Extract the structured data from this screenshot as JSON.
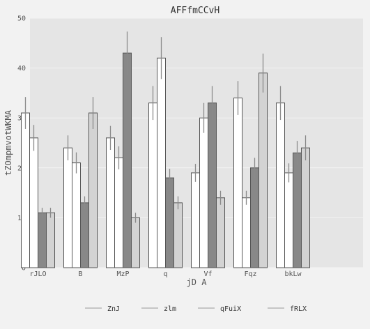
{
  "chart_data": {
    "type": "bar",
    "title": "AFFfmCCvH",
    "xlabel": "jD A",
    "ylabel": "tZOmpmvotWKMA",
    "ylim": [
      0,
      50
    ],
    "yticks": [
      0,
      10,
      20,
      30,
      40,
      50
    ],
    "categories": [
      "rJLO",
      "B",
      "MzP",
      "q",
      "Vf",
      "Fqz",
      "bkLw"
    ],
    "grid": true,
    "legend_position": "bottom",
    "series": [
      {
        "name": "ZnJ",
        "color": "#ffffff",
        "values": [
          31,
          24,
          26,
          33,
          19,
          34,
          33
        ],
        "errors": [
          3.2,
          2.5,
          2.4,
          3.4,
          1.8,
          3.4,
          3.4
        ]
      },
      {
        "name": "zlm",
        "color": "#ffffff",
        "values": [
          26,
          21,
          22,
          42,
          30,
          14,
          19
        ],
        "errors": [
          2.6,
          2.1,
          2.3,
          4.2,
          3.0,
          1.4,
          1.9
        ]
      },
      {
        "name": "qFuiX",
        "color": "#888888",
        "values": [
          11,
          13,
          43,
          18,
          33,
          20,
          23
        ],
        "errors": [
          1.0,
          1.3,
          4.3,
          1.8,
          3.4,
          2.0,
          2.4
        ]
      },
      {
        "name": "fRLX",
        "color": "#d3d3d3",
        "values": [
          11,
          31,
          10,
          13,
          14,
          39,
          24
        ],
        "errors": [
          1.0,
          3.2,
          1.0,
          1.3,
          1.4,
          3.9,
          2.5
        ]
      }
    ]
  }
}
